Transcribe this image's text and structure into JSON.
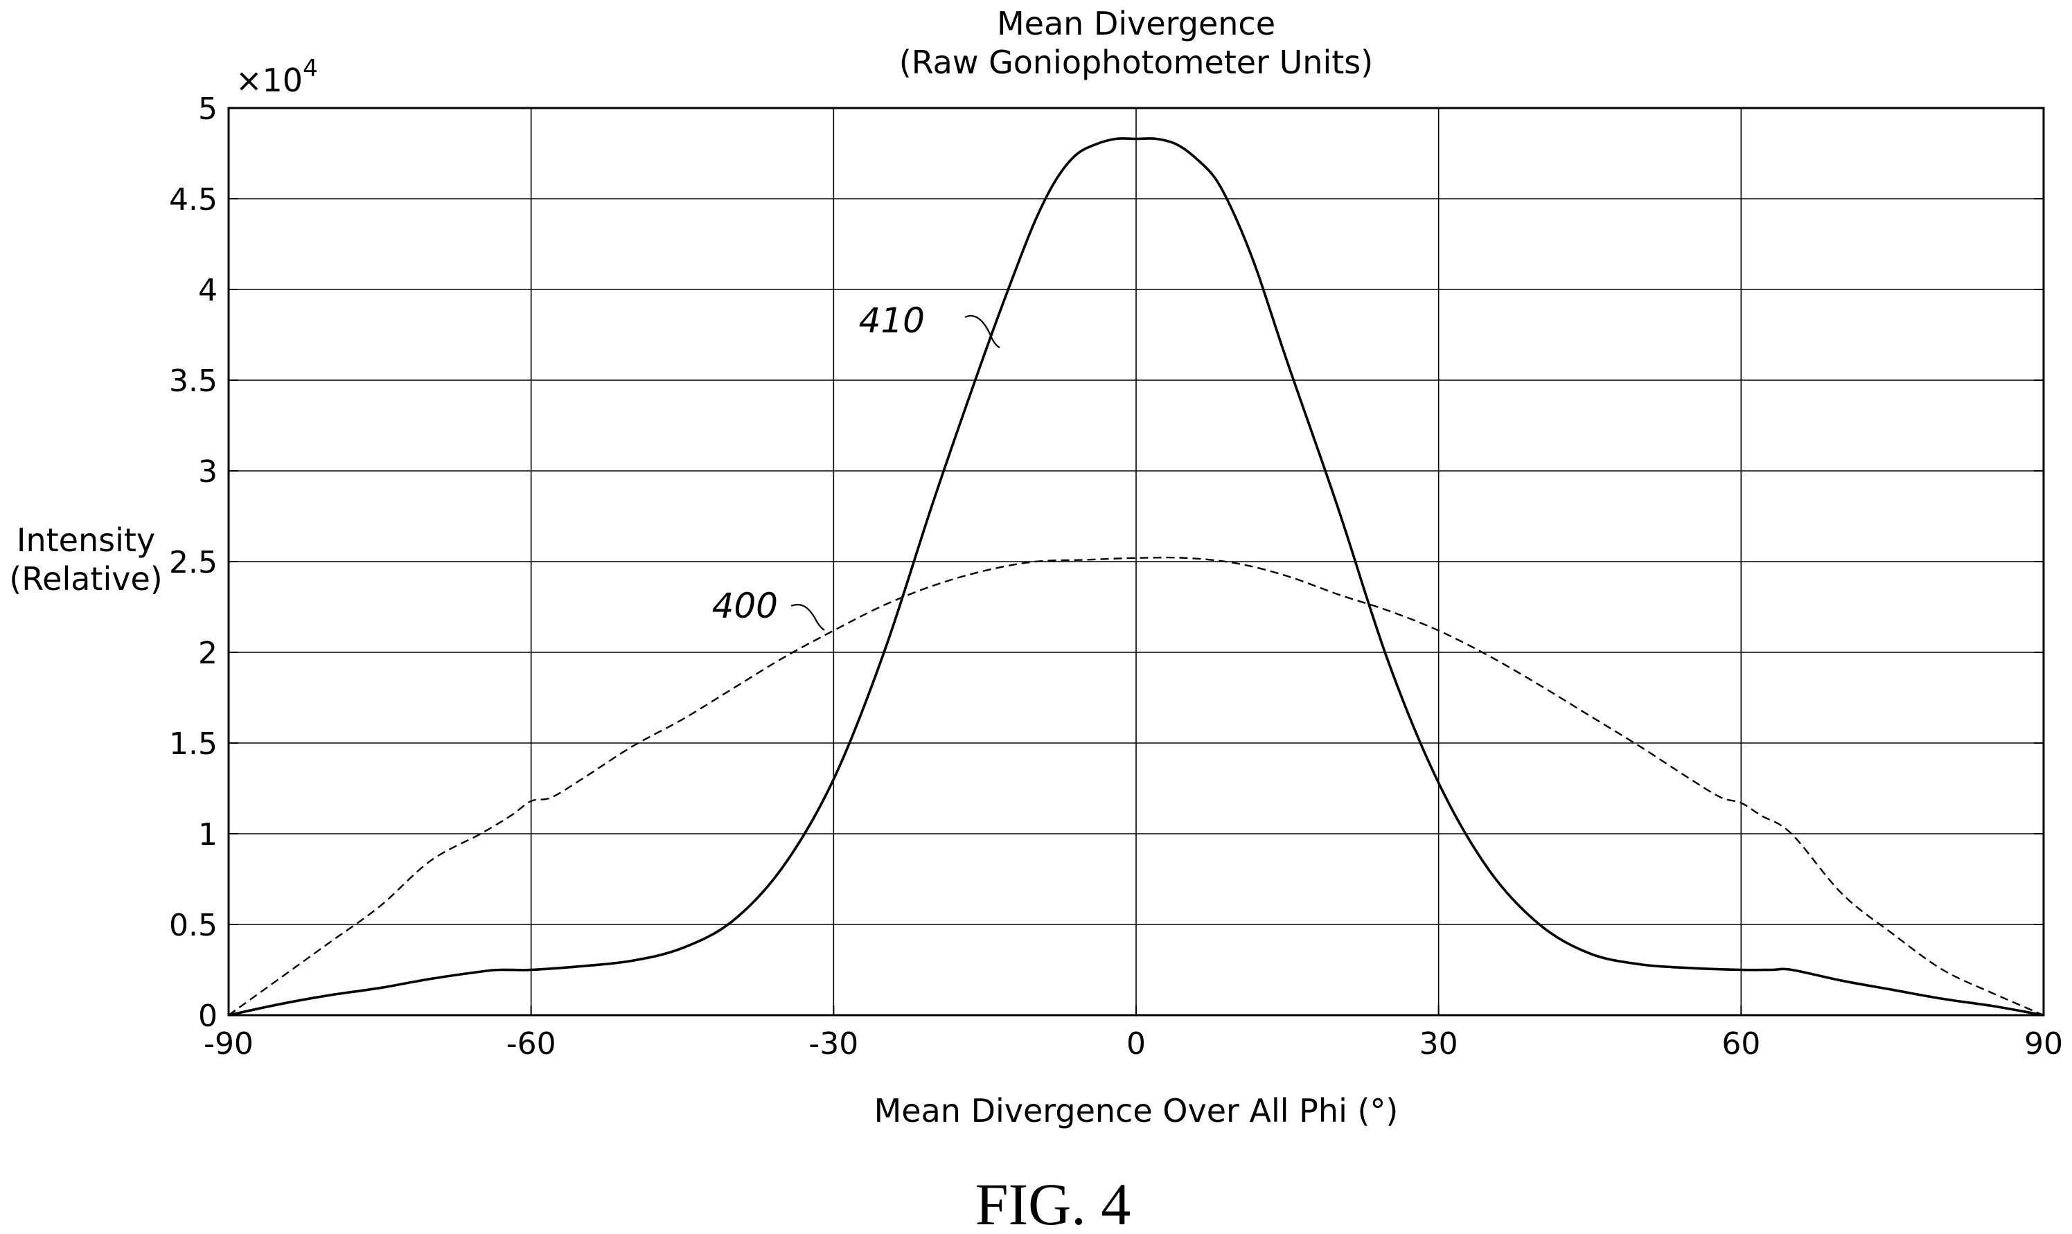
{
  "chart_data": {
    "type": "line",
    "title": "Mean Divergence",
    "subtitle": "(Raw Goniophotometer Units)",
    "xlabel": "Mean Divergence Over All Phi (°)",
    "ylabel_line1": "Intensity",
    "ylabel_line2": "(Relative)",
    "y_multiplier": "×10",
    "y_multiplier_exp": "4",
    "xlim": [
      -90,
      90
    ],
    "ylim": [
      0,
      5
    ],
    "xticks": [
      -90,
      -60,
      -30,
      0,
      30,
      60,
      90
    ],
    "xtick_labels": [
      "-90",
      "-60",
      "-30",
      "0",
      "30",
      "60",
      "90"
    ],
    "yticks": [
      0,
      0.5,
      1,
      1.5,
      2,
      2.5,
      3,
      3.5,
      4,
      4.5,
      5
    ],
    "ytick_labels": [
      "0",
      "0.5",
      "1",
      "1.5",
      "2",
      "2.5",
      "3",
      "3.5",
      "4",
      "4.5",
      "5"
    ],
    "grid": true,
    "series": [
      {
        "name": "410",
        "style": "solid",
        "color": "#000000",
        "x": [
          -90,
          -85,
          -80,
          -75,
          -70,
          -65,
          -63,
          -60,
          -55,
          -50,
          -45,
          -40,
          -35,
          -30,
          -25,
          -20,
          -15,
          -12,
          -10,
          -8,
          -6,
          -4,
          -2,
          0,
          2,
          4,
          6,
          8,
          10,
          12,
          15,
          20,
          25,
          30,
          35,
          40,
          45,
          50,
          55,
          60,
          63,
          65,
          70,
          75,
          80,
          85,
          90
        ],
        "y": [
          0.0,
          0.06,
          0.11,
          0.15,
          0.2,
          0.24,
          0.25,
          0.25,
          0.27,
          0.3,
          0.37,
          0.52,
          0.82,
          1.3,
          2.0,
          2.85,
          3.65,
          4.1,
          4.38,
          4.6,
          4.74,
          4.8,
          4.83,
          4.83,
          4.83,
          4.8,
          4.72,
          4.6,
          4.38,
          4.1,
          3.6,
          2.8,
          1.95,
          1.28,
          0.8,
          0.5,
          0.34,
          0.28,
          0.26,
          0.25,
          0.25,
          0.25,
          0.19,
          0.14,
          0.09,
          0.05,
          0.0
        ]
      },
      {
        "name": "400",
        "style": "dashed",
        "color": "#000000",
        "x": [
          -90,
          -85,
          -80,
          -75,
          -70,
          -65,
          -62,
          -60,
          -58,
          -55,
          -50,
          -45,
          -40,
          -35,
          -30,
          -25,
          -20,
          -15,
          -10,
          -5,
          0,
          5,
          10,
          15,
          20,
          25,
          30,
          35,
          40,
          45,
          50,
          55,
          58,
          60,
          62,
          65,
          70,
          75,
          80,
          85,
          90
        ],
        "y": [
          0.0,
          0.2,
          0.4,
          0.6,
          0.85,
          1.0,
          1.1,
          1.18,
          1.2,
          1.3,
          1.48,
          1.63,
          1.8,
          1.97,
          2.12,
          2.26,
          2.37,
          2.45,
          2.5,
          2.51,
          2.52,
          2.52,
          2.49,
          2.42,
          2.32,
          2.23,
          2.12,
          1.98,
          1.82,
          1.65,
          1.48,
          1.3,
          1.2,
          1.17,
          1.1,
          1.0,
          0.67,
          0.45,
          0.25,
          0.12,
          0.0
        ]
      }
    ],
    "annotations": [
      {
        "text": "410",
        "series": "410"
      },
      {
        "text": "400",
        "series": "400"
      }
    ],
    "figure_label": "FIG. 4"
  }
}
